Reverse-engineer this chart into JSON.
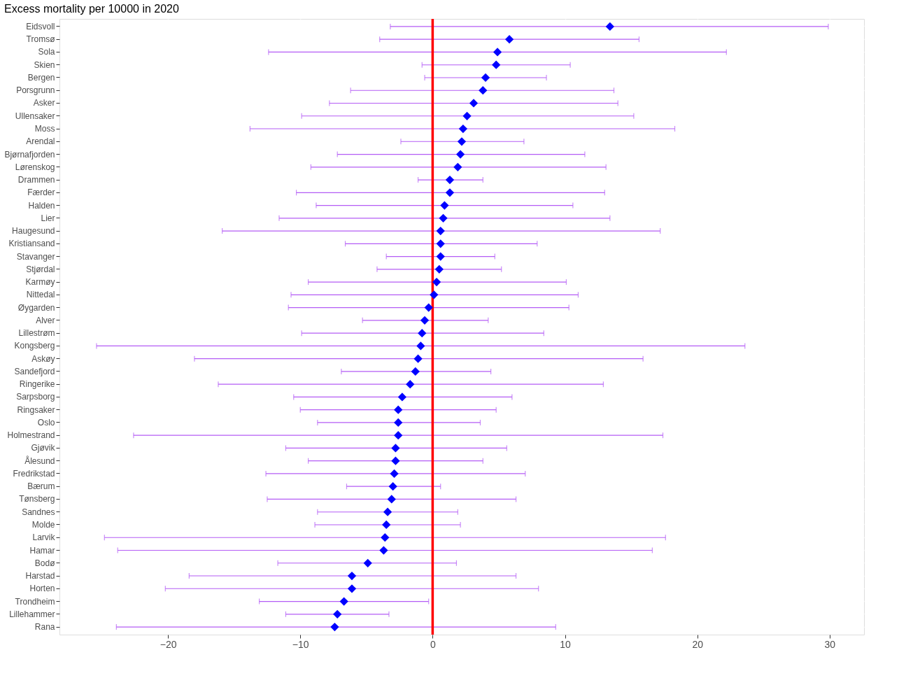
{
  "chart_data": {
    "type": "scatter",
    "orientation": "horizontal",
    "title": "Excess mortality per 10000 in 2020",
    "categories": [
      "Eidsvoll",
      "Tromsø",
      "Sola",
      "Skien",
      "Bergen",
      "Porsgrunn",
      "Asker",
      "Ullensaker",
      "Moss",
      "Arendal",
      "Bjørnafjorden",
      "Lørenskog",
      "Drammen",
      "Færder",
      "Halden",
      "Lier",
      "Haugesund",
      "Kristiansand",
      "Stavanger",
      "Stjørdal",
      "Karmøy",
      "Nittedal",
      "Øygarden",
      "Alver",
      "Lillestrøm",
      "Kongsberg",
      "Askøy",
      "Sandefjord",
      "Ringerike",
      "Sarpsborg",
      "Ringsaker",
      "Oslo",
      "Holmestrand",
      "Gjøvik",
      "Ålesund",
      "Fredrikstad",
      "Bærum",
      "Tønsberg",
      "Sandnes",
      "Molde",
      "Larvik",
      "Hamar",
      "Bodø",
      "Harstad",
      "Horten",
      "Trondheim",
      "Lillehammer",
      "Rana"
    ],
    "series": [
      {
        "color": "#0000ff",
        "values": [
          13.4,
          5.8,
          4.9,
          4.8,
          4.0,
          3.8,
          3.1,
          2.6,
          2.3,
          2.2,
          2.1,
          1.9,
          1.3,
          1.3,
          0.9,
          0.8,
          0.6,
          0.6,
          0.6,
          0.5,
          0.3,
          0.1,
          -0.3,
          -0.6,
          -0.8,
          -0.9,
          -1.1,
          -1.3,
          -1.7,
          -2.3,
          -2.6,
          -2.6,
          -2.6,
          -2.8,
          -2.8,
          -2.9,
          -3.0,
          -3.1,
          -3.4,
          -3.5,
          -3.6,
          -3.7,
          -4.9,
          -6.1,
          -6.1,
          -6.7,
          -7.2,
          -7.4
        ],
        "errors": [
          [
            -3.2,
            29.9
          ],
          [
            -4.0,
            15.6
          ],
          [
            -12.4,
            22.2
          ],
          [
            -0.8,
            10.4
          ],
          [
            -0.6,
            8.6
          ],
          [
            -6.2,
            13.7
          ],
          [
            -7.8,
            14.0
          ],
          [
            -9.9,
            15.2
          ],
          [
            -13.8,
            18.3
          ],
          [
            -2.4,
            6.9
          ],
          [
            -7.2,
            11.5
          ],
          [
            -9.2,
            13.1
          ],
          [
            -1.1,
            3.8
          ],
          [
            -10.3,
            13.0
          ],
          [
            -8.8,
            10.6
          ],
          [
            -11.6,
            13.4
          ],
          [
            -15.9,
            17.2
          ],
          [
            -6.6,
            7.9
          ],
          [
            -3.5,
            4.7
          ],
          [
            -4.2,
            5.2
          ],
          [
            -9.4,
            10.1
          ],
          [
            -10.7,
            11.0
          ],
          [
            -10.9,
            10.3
          ],
          [
            -5.3,
            4.2
          ],
          [
            -9.9,
            8.4
          ],
          [
            -25.4,
            23.6
          ],
          [
            -18.0,
            15.9
          ],
          [
            -6.9,
            4.4
          ],
          [
            -16.2,
            12.9
          ],
          [
            -10.5,
            6.0
          ],
          [
            -10.0,
            4.8
          ],
          [
            -8.7,
            3.6
          ],
          [
            -22.6,
            17.4
          ],
          [
            -11.1,
            5.6
          ],
          [
            -9.4,
            3.8
          ],
          [
            -12.6,
            7.0
          ],
          [
            -6.5,
            0.6
          ],
          [
            -12.5,
            6.3
          ],
          [
            -8.7,
            1.9
          ],
          [
            -8.9,
            2.1
          ],
          [
            -24.8,
            17.6
          ],
          [
            -23.8,
            16.6
          ],
          [
            -11.7,
            1.8
          ],
          [
            -18.4,
            6.3
          ],
          [
            -20.2,
            8.0
          ],
          [
            -13.1,
            -0.3
          ],
          [
            -11.1,
            -3.3
          ],
          [
            -23.9,
            9.3
          ]
        ]
      }
    ],
    "xlim": [
      -28.2,
      32.6
    ],
    "xticks": [
      -20,
      -10,
      0,
      10,
      20,
      30
    ],
    "grid": true,
    "marker": "diamond",
    "ref_lines": [
      {
        "axis": "x",
        "value": 0,
        "color": "#ff0000"
      }
    ]
  }
}
